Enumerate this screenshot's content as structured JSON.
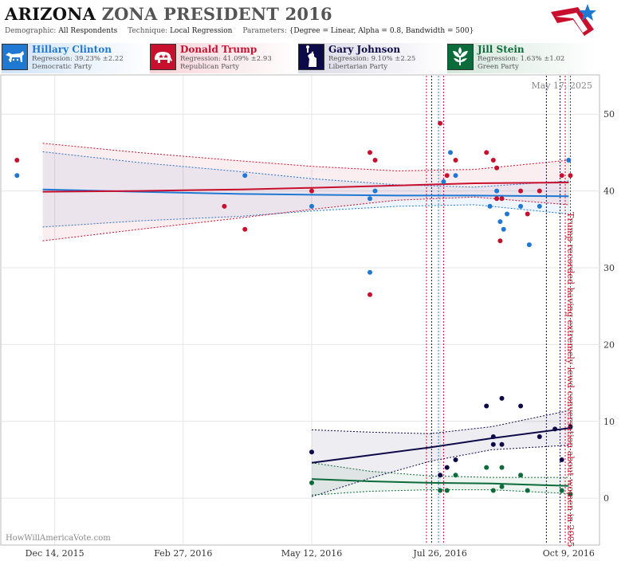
{
  "header": {
    "state": "ARIZONA",
    "subtitle": "ZONA PRESIDENT 2016",
    "demographic_label": "Demographic:",
    "demographic_value": "All Respondents",
    "technique_label": "Technique:",
    "technique_value": "Local Regression",
    "parameters_label": "Parameters:",
    "parameters_value": "{Degree = Linear, Alpha = 0.8, Bandwidth = 500}"
  },
  "candidates": [
    {
      "name": "Hillary Clinton",
      "regression": "Regression: 39.23% ±2.22",
      "party": "Democratic Party",
      "color": "#1f78d1",
      "icon": "donkey-icon"
    },
    {
      "name": "Donald Trump",
      "regression": "Regression: 41.09% ±2.93",
      "party": "Republican Party",
      "color": "#c8102e",
      "icon": "elephant-icon"
    },
    {
      "name": "Gary Johnson",
      "regression": "Regression: 9.10% ±2.25",
      "party": "Libertarian Party",
      "color": "#0d0a4a",
      "icon": "liberty-torch-icon"
    },
    {
      "name": "Jill Stein",
      "regression": "Regression: 1.63% ±1.02",
      "party": "Green Party",
      "color": "#0b6b3a",
      "icon": "leaf-icon"
    }
  ],
  "chart_data": {
    "type": "scatter",
    "date_label": "May 17, 2025",
    "watermark": "HowWillAmericaVote.com",
    "annotation": "Trump recorded having extremely lewd conversation about women in 2005",
    "x_ticks": [
      "Dec 14, 2015",
      "Feb 27, 2016",
      "May 12, 2016",
      "Jul 26, 2016",
      "Oct 9, 2016"
    ],
    "y_ticks": [
      0,
      10,
      20,
      30,
      40,
      50
    ],
    "xlim": [
      "Nov 13, 2015",
      "Oct 27, 2016"
    ],
    "ylim": [
      -6,
      55
    ],
    "grid": true,
    "event_lines": [
      {
        "date": "Jul 18, 2016",
        "color": "#c8102e"
      },
      {
        "date": "Jul 21, 2016",
        "color": "#0d0a4a"
      },
      {
        "date": "Jul 25, 2016",
        "color": "#1f78d1"
      },
      {
        "date": "Jul 28, 2016",
        "color": "#c8102e"
      },
      {
        "date": "Sep 26, 2016",
        "color": "#0d0a4a"
      },
      {
        "date": "Oct 4, 2016",
        "color": "#0d0a4a"
      },
      {
        "date": "Oct 7, 2016",
        "color": "#c8102e"
      },
      {
        "date": "Oct 10, 2016",
        "color": "#c8102e"
      }
    ],
    "series": [
      {
        "color": "#1f78d1",
        "points": [
          [
            "Nov 22, 2015",
            42
          ],
          [
            "Apr 3, 2016",
            42
          ],
          [
            "May 12, 2016",
            38
          ],
          [
            "Jun 15, 2016",
            39
          ],
          [
            "Jun 18, 2016",
            40
          ],
          [
            "Jun 15, 2016",
            29.4
          ],
          [
            "Jul 28, 2016",
            41.2
          ],
          [
            "Aug 1, 2016",
            45
          ],
          [
            "Aug 4, 2016",
            42
          ],
          [
            "Aug 24, 2016",
            38
          ],
          [
            "Aug 28, 2016",
            40
          ],
          [
            "Aug 30, 2016",
            36
          ],
          [
            "Sep 1, 2016",
            35
          ],
          [
            "Sep 3, 2016",
            37
          ],
          [
            "Sep 11, 2016",
            38
          ],
          [
            "Sep 16, 2016",
            33
          ],
          [
            "Sep 22, 2016",
            38
          ],
          [
            "Oct 9, 2016",
            44
          ]
        ],
        "trend": [
          [
            "Dec 7, 2015",
            40.2
          ],
          [
            "Feb 1, 2016",
            39.9
          ],
          [
            "Apr 1, 2016",
            39.6
          ],
          [
            "May 12, 2016",
            39.5
          ],
          [
            "Jul 1, 2016",
            39.4
          ],
          [
            "Aug 15, 2016",
            39.4
          ],
          [
            "Oct 9, 2016",
            39.3
          ]
        ],
        "band_upper": [
          [
            "Dec 7, 2015",
            45.1
          ],
          [
            "Feb 1, 2016",
            43.7
          ],
          [
            "Apr 1, 2016",
            42.5
          ],
          [
            "May 12, 2016",
            41.6
          ],
          [
            "Jul 1, 2016",
            40.8
          ],
          [
            "Aug 15, 2016",
            40.5
          ],
          [
            "Oct 9, 2016",
            41.3
          ]
        ],
        "band_lower": [
          [
            "Dec 7, 2015",
            35.3
          ],
          [
            "Feb 1, 2016",
            36.1
          ],
          [
            "Apr 1, 2016",
            36.7
          ],
          [
            "May 12, 2016",
            37.4
          ],
          [
            "Jul 1, 2016",
            38.0
          ],
          [
            "Aug 15, 2016",
            38.2
          ],
          [
            "Oct 9, 2016",
            37.0
          ]
        ]
      },
      {
        "color": "#c8102e",
        "points": [
          [
            "Nov 22, 2015",
            44
          ],
          [
            "Mar 22, 2016",
            38
          ],
          [
            "Apr 3, 2016",
            35
          ],
          [
            "May 12, 2016",
            40
          ],
          [
            "Jun 15, 2016",
            45
          ],
          [
            "Jun 18, 2016",
            44
          ],
          [
            "Jun 15, 2016",
            26.5
          ],
          [
            "Jul 26, 2016",
            48.8
          ],
          [
            "Jul 30, 2016",
            42
          ],
          [
            "Aug 4, 2016",
            44
          ],
          [
            "Aug 22, 2016",
            45
          ],
          [
            "Aug 26, 2016",
            44
          ],
          [
            "Aug 28, 2016",
            43
          ],
          [
            "Aug 28, 2016",
            39
          ],
          [
            "Aug 31, 2016",
            39
          ],
          [
            "Aug 30, 2016",
            33.5
          ],
          [
            "Sep 11, 2016",
            40
          ],
          [
            "Sep 15, 2016",
            37
          ],
          [
            "Sep 22, 2016",
            40
          ],
          [
            "Oct 5, 2016",
            42
          ],
          [
            "Oct 10, 2016",
            42
          ]
        ],
        "trend": [
          [
            "Dec 7, 2015",
            39.9
          ],
          [
            "Feb 1, 2016",
            40.0
          ],
          [
            "Apr 1, 2016",
            40.2
          ],
          [
            "May 12, 2016",
            40.4
          ],
          [
            "Jul 1, 2016",
            40.7
          ],
          [
            "Aug 15, 2016",
            41.0
          ],
          [
            "Oct 9, 2016",
            41.1
          ]
        ],
        "band_upper": [
          [
            "Dec 7, 2015",
            46.2
          ],
          [
            "Feb 1, 2016",
            45.0
          ],
          [
            "Apr 1, 2016",
            43.9
          ],
          [
            "May 12, 2016",
            43.2
          ],
          [
            "Jul 1, 2016",
            42.6
          ],
          [
            "Aug 15, 2016",
            42.8
          ],
          [
            "Oct 9, 2016",
            44.0
          ]
        ],
        "band_lower": [
          [
            "Dec 7, 2015",
            33.5
          ],
          [
            "Feb 1, 2016",
            35.0
          ],
          [
            "Apr 1, 2016",
            36.5
          ],
          [
            "May 12, 2016",
            37.6
          ],
          [
            "Jul 1, 2016",
            38.8
          ],
          [
            "Aug 15, 2016",
            39.2
          ],
          [
            "Oct 9, 2016",
            38.2
          ]
        ]
      },
      {
        "color": "#0d0a4a",
        "points": [
          [
            "May 12, 2016",
            6
          ],
          [
            "Jul 26, 2016",
            3
          ],
          [
            "Jul 30, 2016",
            4
          ],
          [
            "Aug 4, 2016",
            5
          ],
          [
            "Aug 22, 2016",
            12
          ],
          [
            "Aug 26, 2016",
            7
          ],
          [
            "Aug 26, 2016",
            8
          ],
          [
            "Aug 31, 2016",
            13
          ],
          [
            "Aug 31, 2016",
            7
          ],
          [
            "Sep 11, 2016",
            12
          ],
          [
            "Sep 22, 2016",
            8
          ],
          [
            "Oct 1, 2016",
            9
          ],
          [
            "Oct 5, 2016",
            5
          ],
          [
            "Oct 10, 2016",
            9.3
          ]
        ],
        "trend": [
          [
            "May 12, 2016",
            4.6
          ],
          [
            "Jun 15, 2016",
            5.6
          ],
          [
            "Jul 20, 2016",
            6.6
          ],
          [
            "Aug 25, 2016",
            7.8
          ],
          [
            "Oct 9, 2016",
            9.1
          ]
        ],
        "band_upper": [
          [
            "May 12, 2016",
            8.9
          ],
          [
            "Jun 15, 2016",
            8.6
          ],
          [
            "Jul 20, 2016",
            8.4
          ],
          [
            "Aug 25, 2016",
            9.3
          ],
          [
            "Oct 9, 2016",
            11.4
          ]
        ],
        "band_lower": [
          [
            "May 12, 2016",
            0.2
          ],
          [
            "Jun 15, 2016",
            2.6
          ],
          [
            "Jul 20, 2016",
            4.8
          ],
          [
            "Aug 25, 2016",
            6.3
          ],
          [
            "Oct 9, 2016",
            6.9
          ]
        ]
      },
      {
        "color": "#0b6b3a",
        "points": [
          [
            "May 12, 2016",
            2
          ],
          [
            "Jul 26, 2016",
            1
          ],
          [
            "Jul 30, 2016",
            1
          ],
          [
            "Aug 4, 2016",
            3
          ],
          [
            "Aug 22, 2016",
            4
          ],
          [
            "Aug 26, 2016",
            1
          ],
          [
            "Aug 31, 2016",
            4
          ],
          [
            "Aug 31, 2016",
            1.5
          ],
          [
            "Sep 11, 2016",
            3
          ],
          [
            "Sep 15, 2016",
            1
          ],
          [
            "Oct 5, 2016",
            1
          ],
          [
            "Oct 10, 2016",
            0.5
          ]
        ],
        "trend": [
          [
            "May 12, 2016",
            2.5
          ],
          [
            "Jun 15, 2016",
            2.2
          ],
          [
            "Jul 20, 2016",
            2.0
          ],
          [
            "Aug 25, 2016",
            1.9
          ],
          [
            "Oct 9, 2016",
            1.6
          ]
        ],
        "band_upper": [
          [
            "May 12, 2016",
            4.6
          ],
          [
            "Jun 15, 2016",
            3.5
          ],
          [
            "Jul 20, 2016",
            2.9
          ],
          [
            "Aug 25, 2016",
            2.7
          ],
          [
            "Oct 9, 2016",
            2.7
          ]
        ],
        "band_lower": [
          [
            "May 12, 2016",
            0.4
          ],
          [
            "Jun 15, 2016",
            0.9
          ],
          [
            "Jul 20, 2016",
            1.1
          ],
          [
            "Aug 25, 2016",
            1.1
          ],
          [
            "Oct 9, 2016",
            0.6
          ]
        ]
      }
    ]
  }
}
